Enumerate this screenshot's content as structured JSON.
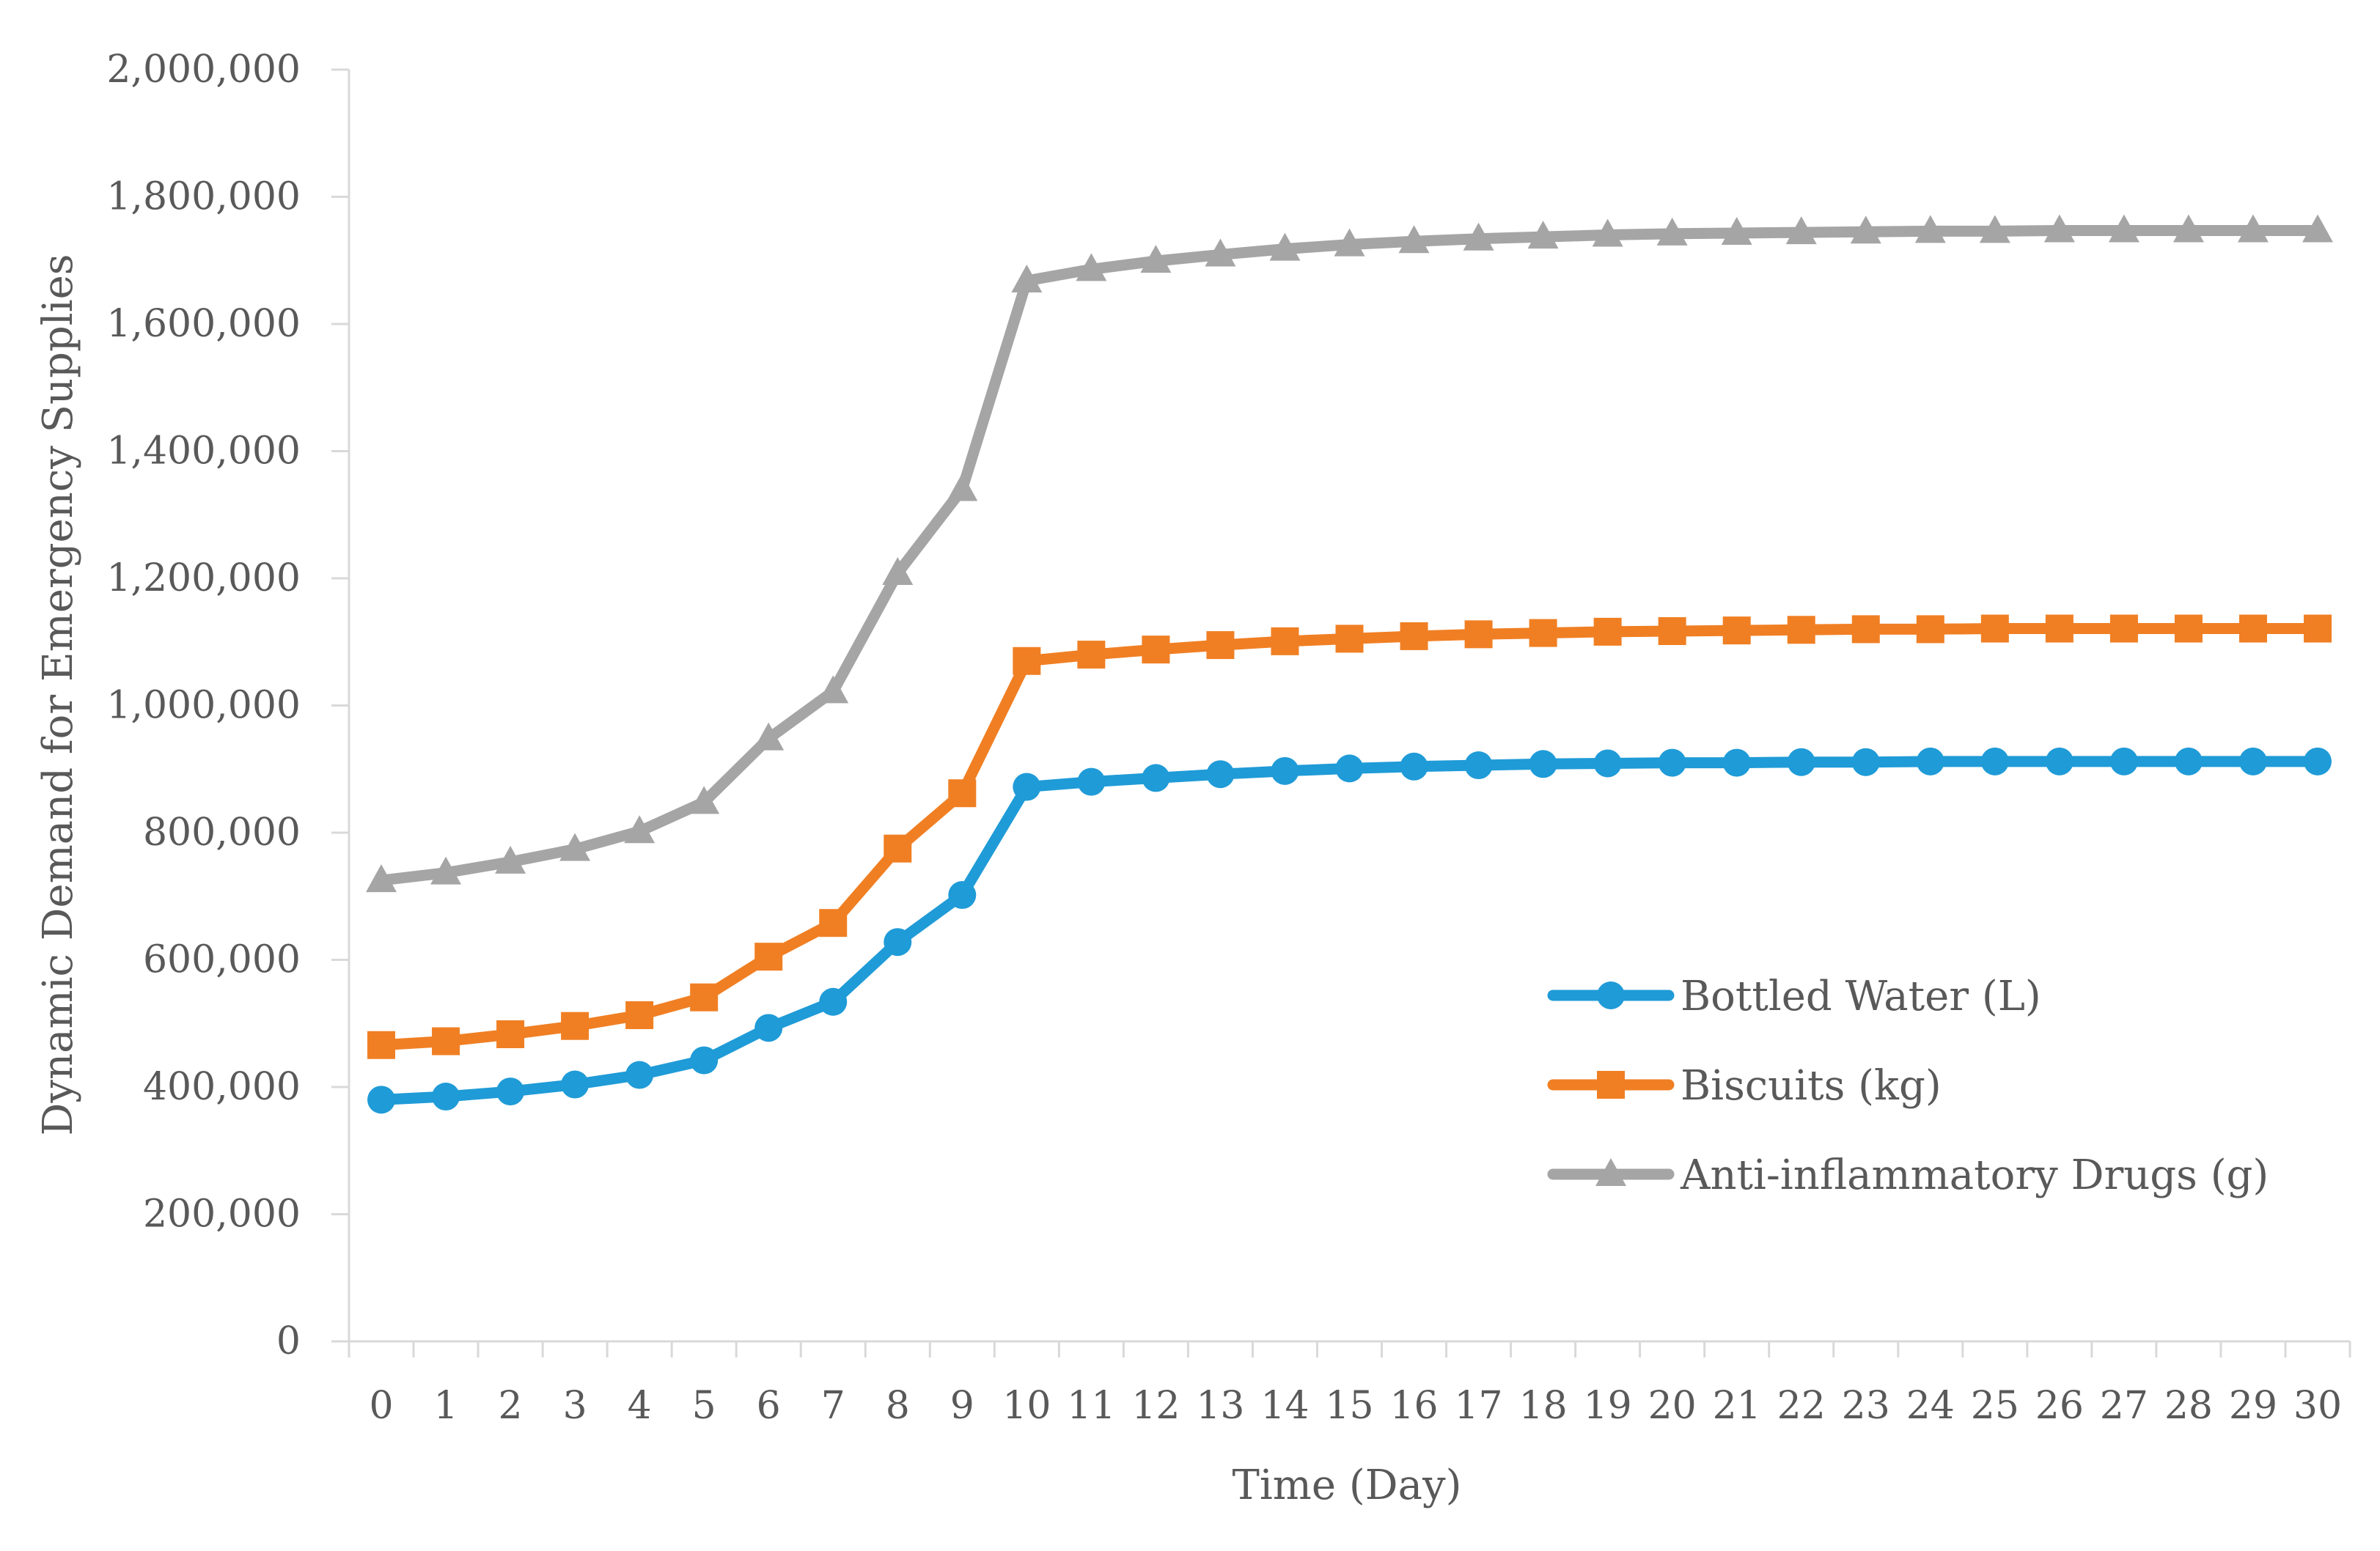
{
  "chart_data": {
    "type": "line",
    "title": "",
    "xlabel": "Time (Day)",
    "ylabel": "Dynamic Demand for Emergency Supplies",
    "categories": [
      "0",
      "1",
      "2",
      "3",
      "4",
      "5",
      "6",
      "7",
      "8",
      "9",
      "10",
      "11",
      "12",
      "13",
      "14",
      "15",
      "16",
      "17",
      "18",
      "19",
      "20",
      "21",
      "22",
      "23",
      "24",
      "25",
      "26",
      "27",
      "28",
      "29",
      "30"
    ],
    "ylim": [
      0,
      2000000
    ],
    "yticks": [
      0,
      200000,
      400000,
      600000,
      800000,
      1000000,
      1200000,
      1400000,
      1600000,
      1800000,
      2000000
    ],
    "ytick_labels": [
      "0",
      "200,000",
      "400,000",
      "600,000",
      "800,000",
      "1,000,000",
      "1,200,000",
      "1,400,000",
      "1,600,000",
      "1,800,000",
      "2,000,000"
    ],
    "grid": false,
    "legend_position": "right-middle",
    "series": [
      {
        "name": "Bottled Water (L)",
        "color": "#1f9bd7",
        "marker": "circle",
        "values": [
          380000,
          385000,
          393000,
          404000,
          419000,
          442000,
          493000,
          534000,
          628000,
          702000,
          872000,
          880000,
          886000,
          892000,
          897000,
          901000,
          904000,
          906000,
          908000,
          909000,
          910000,
          910000,
          911000,
          911000,
          912000,
          912000,
          912000,
          912000,
          912000,
          912000,
          912000
        ]
      },
      {
        "name": "Biscuits (kg)",
        "color": "#f07f23",
        "marker": "square",
        "values": [
          466000,
          472000,
          483000,
          496000,
          513000,
          541000,
          605000,
          658000,
          775000,
          862000,
          1070000,
          1080000,
          1088000,
          1095000,
          1101000,
          1105000,
          1109000,
          1112000,
          1114000,
          1116000,
          1117000,
          1118000,
          1119000,
          1120000,
          1120000,
          1121000,
          1121000,
          1121000,
          1121000,
          1121000,
          1121000
        ]
      },
      {
        "name": "Anti-inflammatory Drugs (g)",
        "color": "#a5a5a5",
        "marker": "triangle",
        "values": [
          725000,
          737000,
          754000,
          774000,
          802000,
          848000,
          948000,
          1022000,
          1208000,
          1340000,
          1668000,
          1686000,
          1699000,
          1709000,
          1718000,
          1725000,
          1730000,
          1734000,
          1737000,
          1740000,
          1742000,
          1743000,
          1744000,
          1745000,
          1746000,
          1746000,
          1747000,
          1747000,
          1747000,
          1747000,
          1747000
        ]
      }
    ]
  }
}
